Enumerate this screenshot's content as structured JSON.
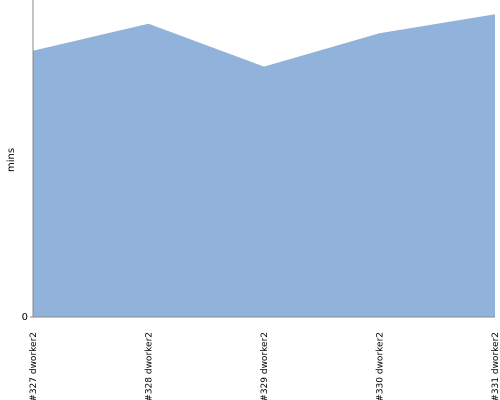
{
  "chart_data": {
    "type": "area",
    "y_label": "mins",
    "categories": [
      "#327 dworker2",
      "#328 dworker2",
      "#329 dworker2",
      "#330 dworker2",
      "#331 dworker2"
    ],
    "values": [
      16.8,
      18.5,
      15.8,
      17.9,
      19.1
    ],
    "color": "#90b2db",
    "ylim": [
      0,
      20
    ],
    "yticks": [
      0
    ]
  }
}
